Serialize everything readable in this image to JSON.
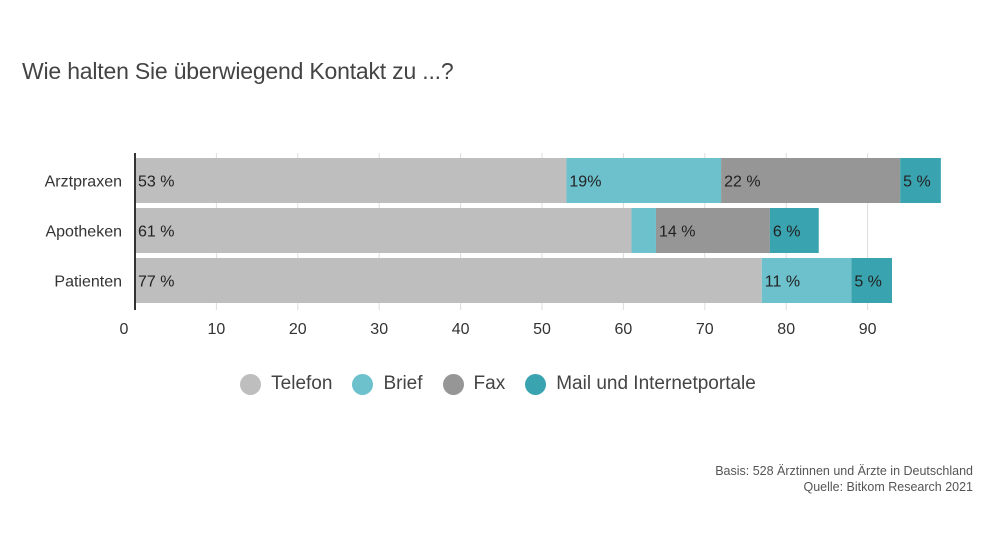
{
  "title": "Wie halten Sie überwiegend Kontakt zu ...?",
  "footer": {
    "basis": "Basis: 528 Ärztinnen und Ärzte in Deutschland",
    "source": "Quelle: Bitkom Research 2021"
  },
  "colors": {
    "telefon": "#bebebe",
    "brief": "#6cc1cc",
    "fax": "#969696",
    "mail": "#3aa3b0",
    "axis": "#333333",
    "grid": "#dddddd"
  },
  "chart_data": {
    "type": "bar",
    "orientation": "horizontal",
    "stacked": true,
    "categories": [
      "Arztpraxen",
      "Apotheken",
      "Patienten"
    ],
    "series": [
      {
        "name": "Telefon",
        "values": [
          53,
          61,
          77
        ],
        "labels": [
          "53 %",
          "61 %",
          "77 %"
        ],
        "color": "#bebebe"
      },
      {
        "name": "Brief",
        "values": [
          19,
          3,
          11
        ],
        "labels": [
          "19%",
          "",
          "11 %"
        ],
        "color": "#6cc1cc"
      },
      {
        "name": "Fax",
        "values": [
          22,
          14,
          0
        ],
        "labels": [
          "22 %",
          "14 %",
          ""
        ],
        "color": "#969696"
      },
      {
        "name": "Mail und Internetportale",
        "values": [
          5,
          6,
          5
        ],
        "labels": [
          "5 %",
          "6 %",
          "5 %"
        ],
        "color": "#3aa3b0"
      }
    ],
    "xlim": [
      0,
      99
    ],
    "xticks": [
      0,
      10,
      20,
      30,
      40,
      50,
      60,
      70,
      80,
      90
    ],
    "grid": true,
    "legend": "bottom"
  }
}
